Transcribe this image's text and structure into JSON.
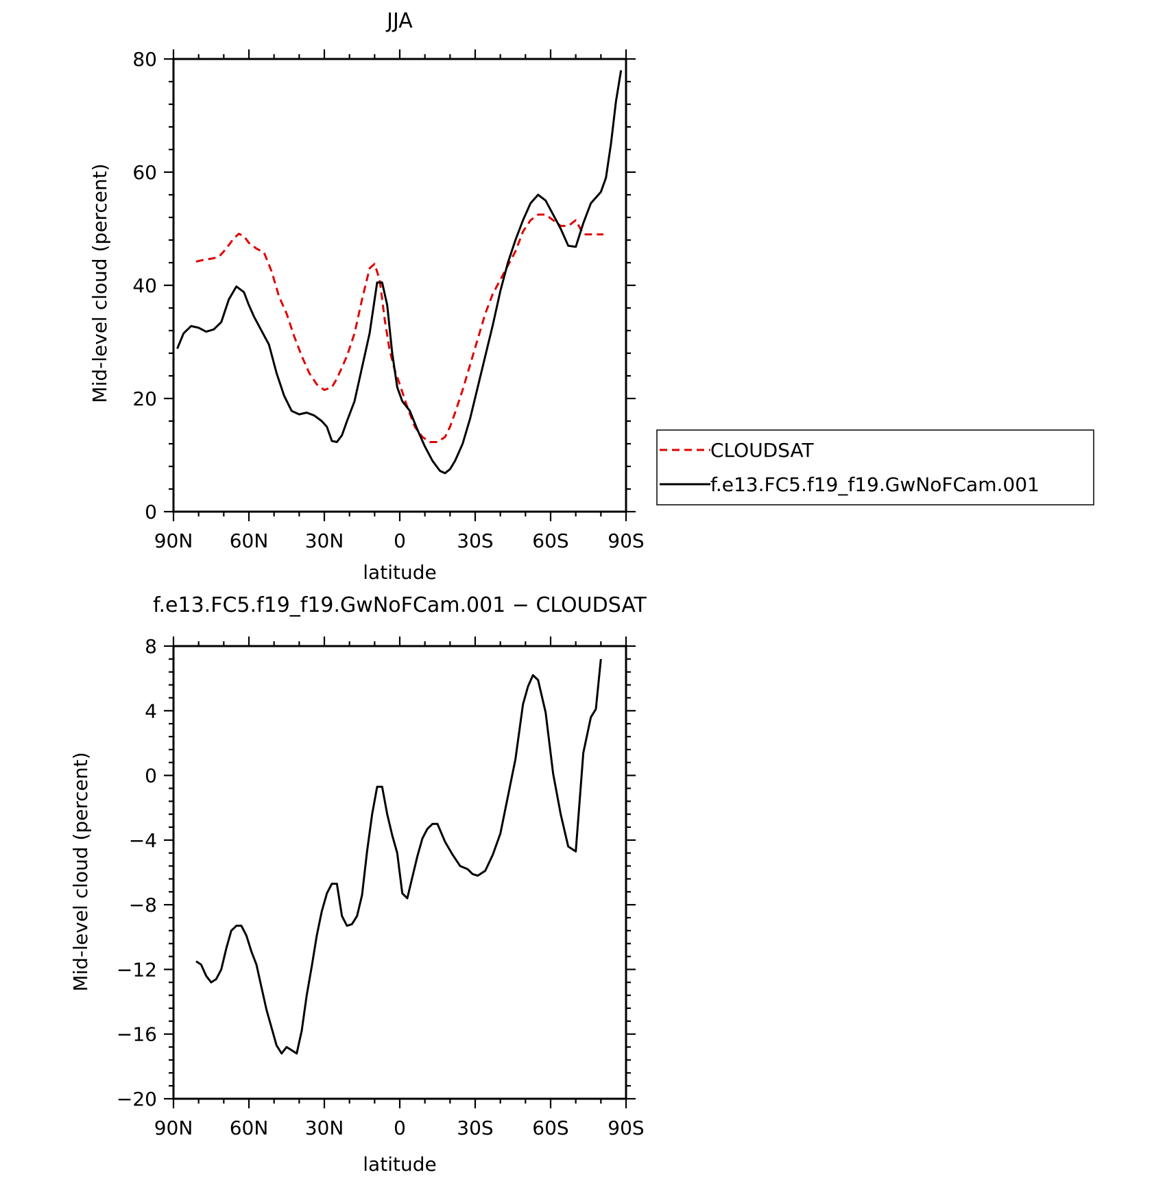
{
  "colors": {
    "background": "#ffffff",
    "axes": "#000000",
    "cloudsat": "#e00000",
    "model": "#000000"
  },
  "chart_data": [
    {
      "type": "line",
      "title": "JJA",
      "xlabel": "latitude",
      "ylabel": "Mid-level cloud (percent)",
      "xlim": [
        90,
        -90
      ],
      "ylim": [
        0,
        80
      ],
      "xticks": [
        90,
        60,
        30,
        0,
        -30,
        -60,
        -90
      ],
      "xtick_labels": [
        "90N",
        "60N",
        "30N",
        "0",
        "30S",
        "60S",
        "90S"
      ],
      "yticks": [
        0,
        20,
        40,
        60,
        80
      ],
      "ytick_labels": [
        "0",
        "20",
        "40",
        "60",
        "80"
      ],
      "grid": false,
      "legend": {
        "placement": "right"
      },
      "series": [
        {
          "name": "CLOUDSAT",
          "style": "dashed",
          "color": "#e00000",
          "x": [
            81,
            78,
            75,
            72,
            69,
            66,
            64,
            62,
            60,
            57,
            54,
            51,
            48,
            45,
            42,
            39,
            36,
            33,
            30,
            27,
            25,
            23,
            21,
            18,
            15,
            12,
            10,
            8,
            6,
            4,
            2,
            0,
            -3,
            -6,
            -9,
            -12,
            -15,
            -18,
            -20,
            -22,
            -25,
            -28,
            -31,
            -34,
            -37,
            -40,
            -43,
            -46,
            -49,
            -52,
            -55,
            -58,
            -61,
            -64,
            -67,
            -70,
            -73,
            -76,
            -79,
            -81
          ],
          "y": [
            44.2,
            44.5,
            44.7,
            45.0,
            46.5,
            48.3,
            49.1,
            48.7,
            47.5,
            46.5,
            45.8,
            42.5,
            38.0,
            35.0,
            31.0,
            27.5,
            24.5,
            22.5,
            21.5,
            22.0,
            23.5,
            25.5,
            27.5,
            31.5,
            37.5,
            43.0,
            43.8,
            41.0,
            34.0,
            28.5,
            25.0,
            22.5,
            18.5,
            15.0,
            13.2,
            12.3,
            12.3,
            13.2,
            15.0,
            17.5,
            21.5,
            26.0,
            30.5,
            35.0,
            38.5,
            41.0,
            43.5,
            46.0,
            49.5,
            51.5,
            52.5,
            52.5,
            51.5,
            50.5,
            50.5,
            51.5,
            49.0,
            49.0,
            49.0,
            49.0
          ]
        },
        {
          "name": "f.e13.FC5.f19_f19.GwNoFCam.001",
          "style": "solid",
          "color": "#000000",
          "x": [
            88.5,
            86,
            83,
            80,
            77,
            74,
            71,
            68,
            65,
            62,
            60,
            58,
            55,
            52,
            49,
            46,
            43,
            40,
            37,
            34,
            31,
            29,
            27,
            25,
            23,
            21,
            18,
            15,
            12,
            9,
            7,
            5,
            3,
            1,
            -1,
            -4,
            -7,
            -10,
            -13,
            -16,
            -18,
            -20,
            -22,
            -25,
            -28,
            -31,
            -34,
            -37,
            -40,
            -43,
            -46,
            -49,
            -52,
            -55,
            -58,
            -61,
            -64,
            -67,
            -70,
            -73,
            -76,
            -78,
            -80,
            -82,
            -84,
            -86,
            -88
          ],
          "y": [
            28.8,
            31.5,
            32.8,
            32.5,
            31.8,
            32.2,
            33.5,
            37.5,
            39.8,
            38.8,
            36.5,
            34.5,
            32.0,
            29.5,
            24.5,
            20.5,
            17.8,
            17.2,
            17.5,
            17.0,
            16.0,
            15.0,
            12.5,
            12.3,
            13.5,
            16.0,
            19.5,
            25.5,
            31.5,
            40.5,
            40.5,
            36.5,
            28.0,
            22.0,
            19.5,
            17.8,
            14.5,
            11.5,
            9.0,
            7.2,
            6.8,
            7.5,
            9.0,
            12.0,
            16.5,
            22.0,
            27.5,
            33.0,
            39.0,
            44.0,
            48.0,
            51.5,
            54.5,
            56.0,
            55.0,
            52.5,
            50.0,
            47.0,
            46.8,
            51.0,
            54.5,
            55.5,
            56.5,
            59.0,
            65.0,
            72.5,
            78.0
          ]
        }
      ]
    },
    {
      "type": "line",
      "title": "f.e13.FC5.f19_f19.GwNoFCam.001 − CLOUDSAT",
      "xlabel": "latitude",
      "ylabel": "Mid-level cloud (percent)",
      "xlim": [
        90,
        -90
      ],
      "ylim": [
        -20,
        8
      ],
      "xticks": [
        90,
        60,
        30,
        0,
        -30,
        -60,
        -90
      ],
      "xtick_labels": [
        "90N",
        "60N",
        "30N",
        "0",
        "30S",
        "60S",
        "90S"
      ],
      "yticks": [
        -20,
        -16,
        -12,
        -8,
        -4,
        0,
        4,
        8
      ],
      "ytick_labels": [
        "−20",
        "−16",
        "−12",
        "−8",
        "−4",
        "0",
        "4",
        "8"
      ],
      "grid": false,
      "series": [
        {
          "style": "solid",
          "color": "#000000",
          "x": [
            81,
            79,
            77,
            75,
            73,
            71,
            69,
            67,
            65,
            63,
            61,
            59,
            57,
            55,
            53,
            51,
            49,
            47,
            45,
            43,
            41,
            39,
            37,
            35,
            33,
            31,
            29,
            27,
            25,
            23,
            21,
            19,
            17,
            15,
            13,
            11,
            9,
            7,
            5,
            3,
            1,
            -1,
            -3,
            -5,
            -7,
            -9,
            -11,
            -13,
            -15,
            -18,
            -21,
            -24,
            -27,
            -29,
            -31,
            -34,
            -37,
            -40,
            -43,
            -46,
            -49,
            -51,
            -53,
            -55,
            -58,
            -61,
            -64,
            -67,
            -70,
            -73,
            -76,
            -78,
            -80
          ],
          "y": [
            -11.5,
            -11.7,
            -12.4,
            -12.8,
            -12.6,
            -12.0,
            -10.7,
            -9.6,
            -9.3,
            -9.3,
            -9.9,
            -10.9,
            -11.7,
            -13.1,
            -14.5,
            -15.6,
            -16.7,
            -17.2,
            -16.8,
            -17.0,
            -17.2,
            -15.8,
            -13.6,
            -11.8,
            -9.9,
            -8.4,
            -7.3,
            -6.7,
            -6.7,
            -8.7,
            -9.3,
            -9.2,
            -8.7,
            -7.4,
            -4.7,
            -2.4,
            -0.7,
            -0.7,
            -2.4,
            -3.7,
            -4.8,
            -7.3,
            -7.6,
            -6.3,
            -5.0,
            -3.9,
            -3.3,
            -3.0,
            -3.0,
            -4.1,
            -4.9,
            -5.6,
            -5.8,
            -6.1,
            -6.2,
            -5.9,
            -4.9,
            -3.6,
            -1.3,
            1.0,
            4.4,
            5.5,
            6.2,
            5.9,
            3.9,
            0.1,
            -2.4,
            -4.4,
            -4.7,
            1.4,
            3.6,
            4.1,
            7.2
          ]
        }
      ]
    }
  ]
}
